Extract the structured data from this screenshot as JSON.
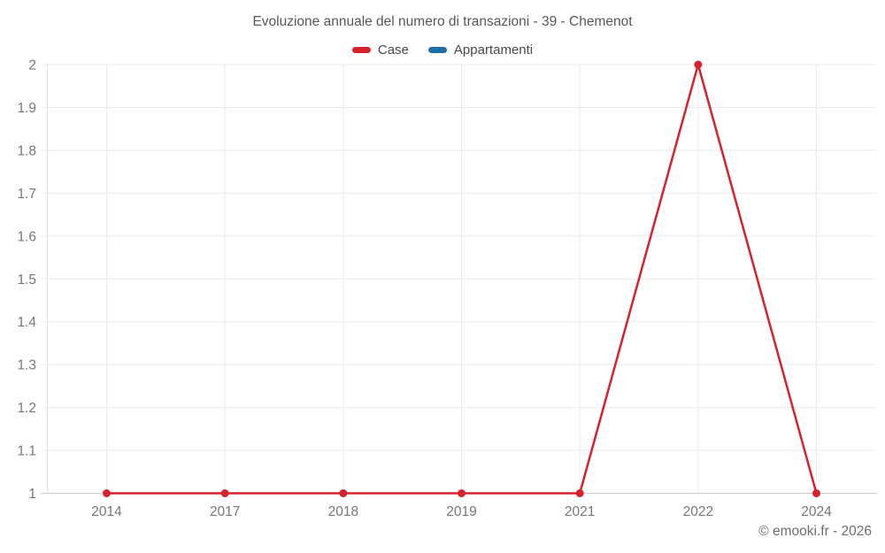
{
  "chart_data": {
    "type": "line",
    "title": "Evoluzione annuale del numero di transazioni - 39 - Chemenot",
    "categories": [
      "2014",
      "2017",
      "2018",
      "2019",
      "2021",
      "2022",
      "2024"
    ],
    "series": [
      {
        "name": "Case",
        "color": "#d5232d",
        "values": [
          1,
          1,
          1,
          1,
          1,
          2,
          1
        ]
      },
      {
        "name": "Appartamenti",
        "color": "#1c6ea4",
        "values": []
      }
    ],
    "ylim": [
      1,
      2
    ],
    "yticks": [
      1,
      1.1,
      1.2,
      1.3,
      1.4,
      1.5,
      1.6,
      1.7,
      1.8,
      1.9,
      2
    ],
    "xlabel": "",
    "ylabel": "",
    "grid": true,
    "legend_position": "top",
    "marker": "circle"
  },
  "footer": {
    "copyright": "© emooki.fr - 2026"
  }
}
